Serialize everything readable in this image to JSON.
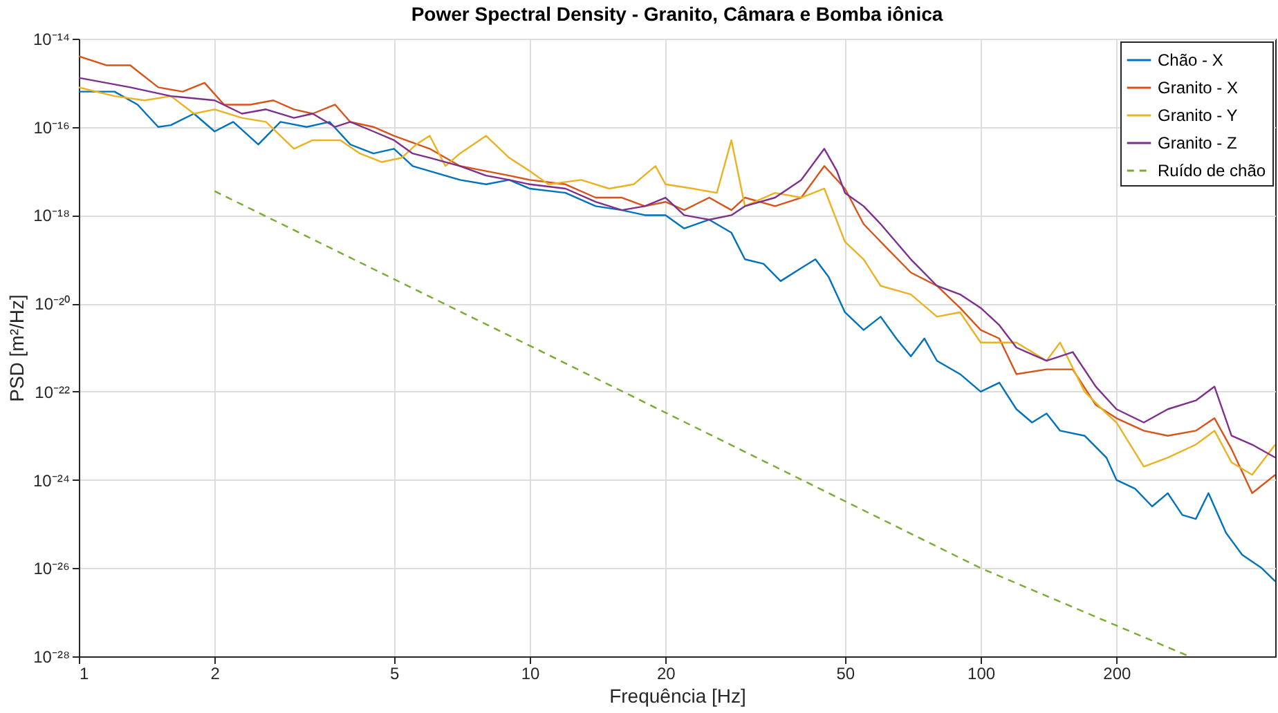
{
  "chart_data": {
    "type": "line",
    "title": "Power Spectral Density - Granito, Câmara e Bomba iônica",
    "xlabel": "Frequência [Hz]",
    "ylabel": "PSD [m²/Hz]",
    "log": "xy",
    "grid": true,
    "legend": "top right",
    "xlim": [
      1,
      450
    ],
    "xticks": [
      1,
      2,
      5,
      10,
      20,
      50,
      100,
      200
    ],
    "ylim": [
      1e-28,
      1e-14
    ],
    "yticks": [
      {
        "value": 1e-28,
        "label": "10⁻²⁸"
      },
      {
        "value": 1e-26,
        "label": "10⁻²⁶"
      },
      {
        "value": 1e-24,
        "label": "10⁻²⁴"
      },
      {
        "value": 1e-22,
        "label": "10⁻²²"
      },
      {
        "value": 1e-20,
        "label": "10⁻²⁰"
      },
      {
        "value": 1e-18,
        "label": "10⁻¹⁸"
      },
      {
        "value": 1e-16,
        "label": "10⁻¹⁶"
      },
      {
        "value": 1e-14,
        "label": "10⁻¹⁴"
      }
    ],
    "series": [
      {
        "name": "Chão - X",
        "color": "#0072bd",
        "x": [
          1,
          1.2,
          1.35,
          1.5,
          1.6,
          1.8,
          2,
          2.2,
          2.5,
          2.8,
          3.2,
          3.6,
          4,
          4.5,
          5,
          5.5,
          6,
          7,
          8,
          9,
          10,
          12,
          14,
          16,
          18,
          20,
          22,
          25,
          28,
          30,
          33,
          36,
          40,
          43,
          46,
          50,
          55,
          60,
          65,
          70,
          75,
          80,
          90,
          100,
          110,
          120,
          130,
          140,
          150,
          170,
          190,
          200,
          220,
          240,
          260,
          280,
          300,
          320,
          350,
          380,
          420,
          450
        ],
        "values": [
          6.3e-16,
          6.3e-16,
          3.2e-16,
          1e-16,
          1.1e-16,
          2e-16,
          7.9e-17,
          1.3e-16,
          4e-17,
          1.3e-16,
          1e-16,
          1.3e-16,
          4e-17,
          2.5e-17,
          3.2e-17,
          1.3e-17,
          1e-17,
          6.3e-18,
          5e-18,
          6.3e-18,
          4e-18,
          3.2e-18,
          1.6e-18,
          1.3e-18,
          1e-18,
          1e-18,
          5e-19,
          7.9e-19,
          4e-19,
          1e-19,
          7.9e-20,
          3.2e-20,
          6.3e-20,
          1e-19,
          4e-20,
          6.3e-21,
          2.5e-21,
          5e-21,
          1.6e-21,
          6.3e-22,
          1.6e-21,
          5e-22,
          2.5e-22,
          1e-22,
          1.6e-22,
          4e-23,
          2e-23,
          3.2e-23,
          1.3e-23,
          1e-23,
          3.2e-24,
          1e-24,
          6.3e-25,
          2.5e-25,
          5e-25,
          1.6e-25,
          1.3e-25,
          5e-25,
          6.3e-26,
          2e-26,
          1e-26,
          5e-27
        ]
      },
      {
        "name": "Granito - X",
        "color": "#d95319",
        "x": [
          1,
          1.15,
          1.3,
          1.5,
          1.7,
          1.9,
          2.1,
          2.4,
          2.7,
          3,
          3.3,
          3.7,
          4,
          4.5,
          5,
          6,
          7,
          8,
          9,
          10,
          12,
          14,
          16,
          18,
          20,
          22,
          25,
          28,
          30,
          35,
          40,
          45,
          50,
          55,
          60,
          70,
          80,
          90,
          100,
          110,
          120,
          140,
          160,
          180,
          200,
          230,
          260,
          300,
          330,
          360,
          400,
          450
        ],
        "values": [
          4e-15,
          2.5e-15,
          2.5e-15,
          7.9e-16,
          6.3e-16,
          1e-15,
          3.2e-16,
          3.2e-16,
          4e-16,
          2.5e-16,
          2e-16,
          3.2e-16,
          1.3e-16,
          1e-16,
          6.3e-17,
          3.2e-17,
          1.3e-17,
          1e-17,
          7.9e-18,
          6.3e-18,
          5e-18,
          2.5e-18,
          2.5e-18,
          1.6e-18,
          2e-18,
          1.3e-18,
          2.5e-18,
          1.3e-18,
          2.5e-18,
          1.6e-18,
          2.5e-18,
          1.3e-17,
          4e-18,
          6.3e-19,
          2.5e-19,
          5e-20,
          2.5e-20,
          7.9e-21,
          2.5e-21,
          1.6e-21,
          2.5e-22,
          3.2e-22,
          3.2e-22,
          5e-23,
          2.5e-23,
          1.3e-23,
          1e-23,
          1.3e-23,
          2.5e-23,
          5e-24,
          5e-25,
          1.3e-24
        ]
      },
      {
        "name": "Granito - Y",
        "color": "#edb120",
        "x": [
          1,
          1.2,
          1.4,
          1.6,
          1.8,
          2,
          2.3,
          2.6,
          3,
          3.3,
          3.8,
          4.2,
          4.7,
          5.2,
          5.6,
          6,
          6.5,
          7,
          8,
          9,
          10,
          11,
          13,
          15,
          17,
          19,
          20,
          23,
          26,
          28,
          30,
          35,
          40,
          45,
          50,
          55,
          60,
          70,
          80,
          90,
          100,
          110,
          120,
          140,
          150,
          170,
          190,
          200,
          230,
          260,
          300,
          330,
          360,
          400,
          450
        ],
        "values": [
          7.9e-16,
          5e-16,
          4e-16,
          5e-16,
          2e-16,
          2.5e-16,
          1.6e-16,
          1.3e-16,
          3.2e-17,
          5e-17,
          5e-17,
          2.5e-17,
          1.6e-17,
          2e-17,
          4e-17,
          6.3e-17,
          1.3e-17,
          2.5e-17,
          6.3e-17,
          2e-17,
          1e-17,
          5e-18,
          6.3e-18,
          4e-18,
          5e-18,
          1.3e-17,
          5e-18,
          4e-18,
          3.2e-18,
          5e-17,
          1.6e-18,
          3.2e-18,
          2.5e-18,
          4e-18,
          2.5e-19,
          1e-19,
          2.5e-20,
          1.6e-20,
          5e-21,
          6.3e-21,
          1.3e-21,
          1.3e-21,
          1.3e-21,
          5e-22,
          1.3e-21,
          1e-22,
          3.2e-23,
          2e-23,
          2e-24,
          3.2e-24,
          6.3e-24,
          1.3e-23,
          2.5e-24,
          1.3e-24,
          6.3e-24
        ]
      },
      {
        "name": "Granito - Z",
        "color": "#7e2f8e",
        "x": [
          1,
          1.3,
          1.6,
          2,
          2.3,
          2.6,
          3,
          3.3,
          3.7,
          4,
          4.5,
          5,
          5.5,
          6,
          7,
          8,
          9,
          10,
          12,
          14,
          16,
          18,
          20,
          22,
          25,
          28,
          30,
          35,
          40,
          45,
          48,
          50,
          55,
          60,
          70,
          80,
          90,
          100,
          110,
          120,
          140,
          160,
          180,
          200,
          230,
          260,
          300,
          330,
          360,
          400,
          450
        ],
        "values": [
          1.3e-15,
          7.9e-16,
          5e-16,
          4e-16,
          2e-16,
          2.5e-16,
          1.6e-16,
          2e-16,
          1e-16,
          1.3e-16,
          7.9e-17,
          5e-17,
          2.5e-17,
          2e-17,
          1.3e-17,
          7.9e-18,
          6.3e-18,
          5e-18,
          4e-18,
          2e-18,
          1.3e-18,
          1.6e-18,
          2.5e-18,
          1e-18,
          7.9e-19,
          1e-18,
          1.6e-18,
          2.5e-18,
          6.3e-18,
          3.2e-17,
          1e-17,
          3.2e-18,
          1.6e-18,
          6.3e-19,
          1e-19,
          2.5e-20,
          1.6e-20,
          7.9e-21,
          3.2e-21,
          1e-21,
          5e-22,
          7.9e-22,
          1.3e-22,
          4e-23,
          2e-23,
          4e-23,
          6.3e-23,
          1.3e-22,
          1e-23,
          6.3e-24,
          3.2e-24
        ]
      },
      {
        "name": "Ruído de chão",
        "color": "#77ac30",
        "line_style": "dashed",
        "x": [
          2,
          10,
          100,
          290
        ],
        "values": [
          3.5e-18,
          1.1e-21,
          1e-26,
          1e-28
        ]
      }
    ]
  }
}
